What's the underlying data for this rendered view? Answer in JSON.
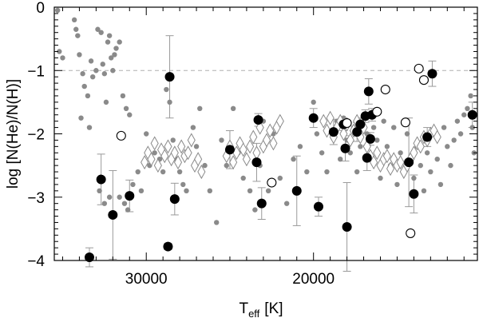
{
  "chart_data": {
    "type": "scatter",
    "title": "",
    "xlabel": {
      "main": "T",
      "sub": "eff",
      "unit": "[K]"
    },
    "ylabel": "log [N(He)/N(H)]",
    "xlim": [
      35500,
      10200
    ],
    "ylim": [
      -4,
      0
    ],
    "x_ticks": [
      30000,
      20000
    ],
    "y_ticks": [
      0,
      -1,
      -2,
      -3,
      -4
    ],
    "x_tick_labels": [
      "30000",
      "20000"
    ],
    "y_tick_labels": [
      "0",
      "−1",
      "−2",
      "−3",
      "−4"
    ],
    "reference_line": {
      "y": -1,
      "style": "dashed"
    },
    "grid": false,
    "colors": {
      "gray": "#8a8a8a",
      "black": "#000000",
      "errorbar": "#9a9a9a",
      "refline": "#b0b0b0"
    },
    "series": [
      {
        "marker": "gray-dot",
        "points": [
          [
            35300,
            -0.05
          ],
          [
            35200,
            -0.7
          ],
          [
            35000,
            -0.8
          ],
          [
            34300,
            -0.2
          ],
          [
            34200,
            -0.35
          ],
          [
            34100,
            -0.45
          ],
          [
            34000,
            -0.75
          ],
          [
            33800,
            -1.05
          ],
          [
            33700,
            -1.25
          ],
          [
            33500,
            -1.4
          ],
          [
            33300,
            -0.85
          ],
          [
            33200,
            -1.1
          ],
          [
            33000,
            -1.0
          ],
          [
            32900,
            -0.35
          ],
          [
            32700,
            -0.4
          ],
          [
            32600,
            -0.9
          ],
          [
            32500,
            -1.05
          ],
          [
            32400,
            -1.5
          ],
          [
            32300,
            -0.55
          ],
          [
            32200,
            -0.45
          ],
          [
            32100,
            -0.8
          ],
          [
            32000,
            -1.0
          ],
          [
            31900,
            -0.75
          ],
          [
            31800,
            -0.65
          ],
          [
            31600,
            -0.55
          ],
          [
            31400,
            -1.4
          ],
          [
            31200,
            -1.6
          ],
          [
            31000,
            -1.7
          ],
          [
            33900,
            -1.75
          ],
          [
            33400,
            -1.9
          ],
          [
            32800,
            -2.9
          ],
          [
            32500,
            -3.1
          ],
          [
            32200,
            -3.0
          ],
          [
            31600,
            -3.0
          ],
          [
            31300,
            -3.1
          ],
          [
            31100,
            -3.2
          ],
          [
            30800,
            -2.8
          ],
          [
            30500,
            -2.6
          ],
          [
            30300,
            -2.9
          ],
          [
            30000,
            -2.0
          ],
          [
            29800,
            -2.5
          ],
          [
            29500,
            -2.3
          ],
          [
            29200,
            -2.4
          ],
          [
            29000,
            -2.6
          ],
          [
            28800,
            -1.3
          ],
          [
            28600,
            -1.5
          ],
          [
            28400,
            -2.1
          ],
          [
            28200,
            -2.4
          ],
          [
            28000,
            -2.6
          ],
          [
            27800,
            -2.8
          ],
          [
            27600,
            -2.9
          ],
          [
            27200,
            -1.9
          ],
          [
            27000,
            -2.2
          ],
          [
            26800,
            -1.6
          ],
          [
            26500,
            -2.5
          ],
          [
            26200,
            -2.9
          ],
          [
            25800,
            -3.4
          ],
          [
            25500,
            -2.1
          ],
          [
            25200,
            -2.5
          ],
          [
            24800,
            -1.6
          ],
          [
            24500,
            -2.3
          ],
          [
            24200,
            -2.7
          ],
          [
            23800,
            -2.9
          ],
          [
            23500,
            -3.2
          ],
          [
            23200,
            -2.5
          ],
          [
            23000,
            -1.8
          ],
          [
            22700,
            -2.9
          ],
          [
            22400,
            -2.0
          ],
          [
            22000,
            -2.7
          ],
          [
            21600,
            -3.1
          ],
          [
            21200,
            -2.4
          ],
          [
            20800,
            -2.2
          ],
          [
            20400,
            -2.6
          ],
          [
            20000,
            -1.5
          ],
          [
            19800,
            -2.0
          ],
          [
            19500,
            -2.3
          ],
          [
            19200,
            -2.6
          ],
          [
            18900,
            -2.0
          ],
          [
            18600,
            -1.8
          ],
          [
            18400,
            -2.4
          ],
          [
            18200,
            -1.75
          ],
          [
            18000,
            -2.1
          ],
          [
            17800,
            -2.3
          ],
          [
            17600,
            -1.9
          ],
          [
            17400,
            -2.6
          ],
          [
            17200,
            -2.2
          ],
          [
            17000,
            -1.7
          ],
          [
            16800,
            -2.0
          ],
          [
            16600,
            -2.4
          ],
          [
            16400,
            -1.9
          ],
          [
            16200,
            -2.1
          ],
          [
            16000,
            -2.7
          ],
          [
            15800,
            -1.8
          ],
          [
            15600,
            -2.2
          ],
          [
            15400,
            -2.5
          ],
          [
            15200,
            -1.9
          ],
          [
            15000,
            -2.8
          ],
          [
            14800,
            -2.3
          ],
          [
            14600,
            -2.6
          ],
          [
            14400,
            -2.0
          ],
          [
            14200,
            -2.4
          ],
          [
            14000,
            -2.7
          ],
          [
            13800,
            -2.2
          ],
          [
            13600,
            -2.5
          ],
          [
            13400,
            -2.9
          ],
          [
            13200,
            -2.3
          ],
          [
            13000,
            -2.6
          ],
          [
            12800,
            -2.0
          ],
          [
            12600,
            -2.4
          ],
          [
            12400,
            -2.8
          ],
          [
            12200,
            -1.9
          ],
          [
            12000,
            -2.2
          ],
          [
            11800,
            -2.5
          ],
          [
            11600,
            -2.1
          ],
          [
            11400,
            -1.8
          ],
          [
            11200,
            -2.0
          ],
          [
            11000,
            -1.7
          ],
          [
            10800,
            -1.6
          ],
          [
            10600,
            -1.4
          ],
          [
            10500,
            -1.9
          ],
          [
            10400,
            -2.3
          ]
        ]
      },
      {
        "marker": "gray-diamond-open",
        "points": [
          [
            29100,
            -2.25
          ],
          [
            28900,
            -2.35
          ],
          [
            28700,
            -2.2
          ],
          [
            28500,
            -2.4
          ],
          [
            28300,
            -2.3
          ],
          [
            28100,
            -2.45
          ],
          [
            27900,
            -2.2
          ],
          [
            27700,
            -2.35
          ],
          [
            27500,
            -2.3
          ],
          [
            27300,
            -2.1
          ],
          [
            27100,
            -2.5
          ],
          [
            26900,
            -2.4
          ],
          [
            26700,
            -2.6
          ],
          [
            30100,
            -2.45
          ],
          [
            29900,
            -2.3
          ],
          [
            29700,
            -2.4
          ],
          [
            29500,
            -2.15
          ],
          [
            29300,
            -2.5
          ],
          [
            25200,
            -2.35
          ],
          [
            25000,
            -2.2
          ],
          [
            24800,
            -2.45
          ],
          [
            24600,
            -2.3
          ],
          [
            24400,
            -2.15
          ],
          [
            24200,
            -2.25
          ],
          [
            24000,
            -2.4
          ],
          [
            23800,
            -2.2
          ],
          [
            23600,
            -2.05
          ],
          [
            23400,
            -2.3
          ],
          [
            23200,
            -1.9
          ],
          [
            23000,
            -2.2
          ],
          [
            22800,
            -2.1
          ],
          [
            22600,
            -1.95
          ],
          [
            22400,
            -2.15
          ],
          [
            22200,
            -1.9
          ],
          [
            22000,
            -1.8
          ],
          [
            19400,
            -1.8
          ],
          [
            19200,
            -1.95
          ],
          [
            19000,
            -1.75
          ],
          [
            18800,
            -2.05
          ],
          [
            18600,
            -1.9
          ],
          [
            18400,
            -1.8
          ],
          [
            18200,
            -2.0
          ],
          [
            18000,
            -1.85
          ],
          [
            17800,
            -2.1
          ],
          [
            17600,
            -1.95
          ],
          [
            17400,
            -1.8
          ],
          [
            17200,
            -2.05
          ],
          [
            17000,
            -1.9
          ],
          [
            16800,
            -2.2
          ],
          [
            16600,
            -2.35
          ],
          [
            16400,
            -2.45
          ],
          [
            16200,
            -2.3
          ],
          [
            16000,
            -2.5
          ],
          [
            15800,
            -2.4
          ],
          [
            15600,
            -2.35
          ],
          [
            15400,
            -2.55
          ],
          [
            15200,
            -2.4
          ],
          [
            15000,
            -2.5
          ],
          [
            14800,
            -2.45
          ],
          [
            14600,
            -2.6
          ],
          [
            14400,
            -2.5
          ],
          [
            14200,
            -2.4
          ],
          [
            14000,
            -2.3
          ],
          [
            13800,
            -2.15
          ],
          [
            13600,
            -2.2
          ],
          [
            13400,
            -2.05
          ],
          [
            13200,
            -2.1
          ],
          [
            13000,
            -2.0
          ],
          [
            12800,
            -1.95
          ],
          [
            12600,
            -2.05
          ]
        ]
      },
      {
        "marker": "black-dot-with-errorbar",
        "points": [
          [
            33400,
            -3.95,
            0.15
          ],
          [
            32700,
            -2.72,
            0.4
          ],
          [
            32000,
            -3.28,
            0.7
          ],
          [
            31000,
            -2.98,
            0.25
          ],
          [
            28600,
            -1.1,
            0.65
          ],
          [
            28700,
            -3.78,
            0.05
          ],
          [
            28300,
            -3.03,
            0.25
          ],
          [
            25000,
            -2.25,
            0.3
          ],
          [
            23300,
            -1.78,
            0.1
          ],
          [
            23400,
            -2.45,
            0.3
          ],
          [
            23100,
            -3.1,
            0.25
          ],
          [
            21000,
            -2.9,
            0.55
          ],
          [
            20000,
            -1.75,
            0.15
          ],
          [
            19700,
            -3.15,
            0.15
          ],
          [
            18800,
            -1.97,
            0.2
          ],
          [
            18200,
            -1.85,
            0.1
          ],
          [
            18100,
            -2.23,
            0.2
          ],
          [
            18000,
            -3.47,
            0.7
          ],
          [
            17400,
            -1.97,
            0.15
          ],
          [
            17200,
            -1.85,
            0.1
          ],
          [
            16900,
            -1.72,
            0.1
          ],
          [
            16700,
            -1.33,
            0.2
          ],
          [
            16800,
            -2.38,
            0.2
          ],
          [
            16600,
            -2.08,
            0.1
          ],
          [
            16500,
            -1.7,
            0.1
          ],
          [
            14000,
            -2.95,
            0.3
          ],
          [
            14300,
            -2.45,
            0.7
          ],
          [
            13200,
            -2.05,
            0.15
          ],
          [
            12900,
            -1.05,
            0.2
          ],
          [
            10500,
            -1.7,
            0.2
          ]
        ]
      },
      {
        "marker": "black-circle-open",
        "points": [
          [
            31500,
            -2.03
          ],
          [
            22500,
            -2.77
          ],
          [
            18000,
            -1.83
          ],
          [
            15700,
            -1.3
          ],
          [
            14500,
            -1.82
          ],
          [
            16200,
            -1.65
          ],
          [
            14200,
            -3.57
          ],
          [
            13700,
            -0.97
          ],
          [
            13400,
            -1.15
          ]
        ]
      }
    ]
  }
}
